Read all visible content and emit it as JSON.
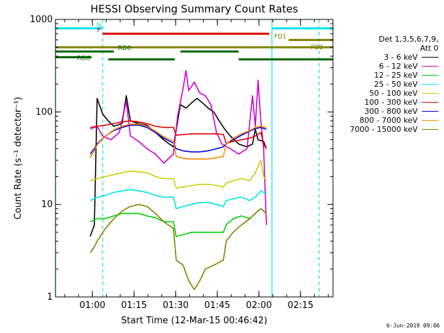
{
  "chart_data": {
    "type": "line",
    "title": "HESSI Observing Summary Count Rates",
    "xlabel": "Start Time (12-Mar-15 00:46:42)",
    "ylabel": "Count Rate (s⁻¹ detector⁻¹)",
    "yscale": "log",
    "ylim": [
      1,
      1000
    ],
    "xlim_minutes": [
      0,
      100
    ],
    "y_ticks": [
      "1",
      "10",
      "100",
      "1000"
    ],
    "x_ticks": [
      {
        "label": "01:00",
        "t": 13.3
      },
      {
        "label": "01:15",
        "t": 28.3
      },
      {
        "label": "01:30",
        "t": 43.3
      },
      {
        "label": "01:45",
        "t": 58.3
      },
      {
        "label": "02:00",
        "t": 73.3
      },
      {
        "label": "02:15",
        "t": 88.3
      }
    ],
    "x_minor_step_minutes": 5,
    "legend": {
      "header_lines": [
        "Det 1,3,5,6,7,9,",
        "Att 0"
      ],
      "placement": "right"
    },
    "series": [
      {
        "name": "3 - 6 keV",
        "color": "#000000",
        "points": [
          [
            12.5,
            4.5
          ],
          [
            14,
            6
          ],
          [
            15,
            140
          ],
          [
            17,
            95
          ],
          [
            19,
            80
          ],
          [
            21,
            70
          ],
          [
            24,
            75
          ],
          [
            25.5,
            150
          ],
          [
            27,
            80
          ],
          [
            30,
            75
          ],
          [
            33,
            72
          ],
          [
            36,
            60
          ],
          [
            39,
            50
          ],
          [
            41,
            45
          ],
          [
            42.5,
            42
          ],
          [
            45,
            120
          ],
          [
            47,
            110
          ],
          [
            49,
            125
          ],
          [
            51,
            140
          ],
          [
            53,
            125
          ],
          [
            55,
            110
          ],
          [
            57,
            100
          ],
          [
            59,
            80
          ],
          [
            61,
            65
          ],
          [
            63,
            55
          ],
          [
            66,
            45
          ],
          [
            69,
            42
          ],
          [
            71,
            45
          ],
          [
            72,
            65
          ],
          [
            73,
            50
          ],
          [
            75,
            48
          ],
          [
            76,
            40
          ]
        ]
      },
      {
        "name": "6 - 12 keV",
        "color": "#cc00cc",
        "points": [
          [
            12.5,
            65
          ],
          [
            14,
            68
          ],
          [
            15,
            70
          ],
          [
            17,
            55
          ],
          [
            20,
            50
          ],
          [
            23,
            60
          ],
          [
            25.5,
            130
          ],
          [
            27,
            55
          ],
          [
            30,
            48
          ],
          [
            33,
            40
          ],
          [
            36,
            35
          ],
          [
            39,
            28
          ],
          [
            42.5,
            35
          ],
          [
            44,
            90
          ],
          [
            46,
            180
          ],
          [
            47,
            280
          ],
          [
            48,
            170
          ],
          [
            50,
            210
          ],
          [
            52,
            160
          ],
          [
            54,
            150
          ],
          [
            56,
            120
          ],
          [
            58,
            60
          ],
          [
            60,
            45
          ],
          [
            63,
            40
          ],
          [
            66,
            35
          ],
          [
            69,
            40
          ],
          [
            71,
            150
          ],
          [
            72,
            70
          ],
          [
            73,
            220
          ],
          [
            74,
            80
          ],
          [
            75,
            40
          ],
          [
            76,
            6
          ]
        ]
      },
      {
        "name": "12 - 25 keV",
        "color": "#00cc00",
        "points": [
          [
            12.5,
            6.5
          ],
          [
            15,
            7
          ],
          [
            18,
            7
          ],
          [
            21,
            7.5
          ],
          [
            24,
            8
          ],
          [
            27,
            8
          ],
          [
            30,
            8
          ],
          [
            33,
            7.5
          ],
          [
            36,
            7.2
          ],
          [
            39,
            6.5
          ],
          [
            42.5,
            6.5
          ],
          [
            43.5,
            4.5
          ],
          [
            46,
            4.7
          ],
          [
            49,
            5
          ],
          [
            52,
            5
          ],
          [
            55,
            5
          ],
          [
            58,
            5
          ],
          [
            60.5,
            5
          ],
          [
            61.5,
            6
          ],
          [
            64,
            7
          ],
          [
            67,
            7.5
          ],
          [
            70,
            7
          ],
          [
            72,
            8
          ],
          [
            74,
            9
          ],
          [
            76,
            8
          ]
        ]
      },
      {
        "name": "25 - 50 keV",
        "color": "#00e5e5",
        "points": [
          [
            12.5,
            11
          ],
          [
            15,
            12
          ],
          [
            18,
            12.5
          ],
          [
            21,
            13.5
          ],
          [
            24,
            14
          ],
          [
            27,
            14.5
          ],
          [
            30,
            14
          ],
          [
            33,
            13.5
          ],
          [
            36,
            12.5
          ],
          [
            39,
            12
          ],
          [
            42.5,
            12
          ],
          [
            43.5,
            9
          ],
          [
            46,
            9.5
          ],
          [
            49,
            10
          ],
          [
            52,
            10.5
          ],
          [
            55,
            10.5
          ],
          [
            58,
            10
          ],
          [
            60.5,
            9.5
          ],
          [
            61.5,
            11
          ],
          [
            64,
            11.5
          ],
          [
            67,
            12
          ],
          [
            70,
            11
          ],
          [
            72,
            12
          ],
          [
            74,
            14
          ],
          [
            76,
            13
          ]
        ]
      },
      {
        "name": "50 - 100 keV",
        "color": "#cccc00",
        "points": [
          [
            12.5,
            18
          ],
          [
            15,
            19
          ],
          [
            18,
            20
          ],
          [
            21,
            21
          ],
          [
            24,
            22
          ],
          [
            27,
            23
          ],
          [
            30,
            22.5
          ],
          [
            33,
            22
          ],
          [
            36,
            20
          ],
          [
            39,
            19
          ],
          [
            42.5,
            19
          ],
          [
            43.5,
            15
          ],
          [
            46,
            15.5
          ],
          [
            49,
            16
          ],
          [
            52,
            16.5
          ],
          [
            55,
            16.5
          ],
          [
            58,
            16
          ],
          [
            60.5,
            15.5
          ],
          [
            61.5,
            17
          ],
          [
            64,
            18
          ],
          [
            67,
            19
          ],
          [
            70,
            18
          ],
          [
            72,
            22
          ],
          [
            74,
            30
          ],
          [
            75,
            20
          ],
          [
            76,
            18
          ]
        ]
      },
      {
        "name": "100 - 300 keV",
        "color": "#dd0000",
        "points": [
          [
            12.5,
            68
          ],
          [
            15,
            70
          ],
          [
            18,
            72
          ],
          [
            21,
            75
          ],
          [
            24,
            78
          ],
          [
            27,
            80
          ],
          [
            30,
            78
          ],
          [
            33,
            75
          ],
          [
            36,
            70
          ],
          [
            39,
            68
          ],
          [
            42.5,
            68
          ],
          [
            43.5,
            56
          ],
          [
            46,
            57
          ],
          [
            49,
            58
          ],
          [
            52,
            58
          ],
          [
            55,
            58
          ],
          [
            58,
            58
          ],
          [
            60.5,
            57
          ],
          [
            61.5,
            46
          ],
          [
            64,
            48
          ],
          [
            67,
            50
          ],
          [
            70,
            52
          ],
          [
            72,
            55
          ],
          [
            74,
            60
          ],
          [
            75,
            45
          ],
          [
            76,
            40
          ]
        ]
      },
      {
        "name": "300 - 800 keV",
        "color": "#0000dd",
        "points": [
          [
            12.5,
            35
          ],
          [
            14,
            40
          ],
          [
            15,
            45
          ],
          [
            18,
            55
          ],
          [
            21,
            63
          ],
          [
            24,
            68
          ],
          [
            27,
            72
          ],
          [
            30,
            72
          ],
          [
            33,
            68
          ],
          [
            36,
            60
          ],
          [
            39,
            52
          ],
          [
            42.5,
            46
          ],
          [
            43.5,
            40
          ],
          [
            46,
            38
          ],
          [
            49,
            37
          ],
          [
            52,
            37
          ],
          [
            55,
            38
          ],
          [
            58,
            40
          ],
          [
            60.5,
            42
          ],
          [
            61.5,
            45
          ],
          [
            64,
            50
          ],
          [
            67,
            56
          ],
          [
            70,
            62
          ],
          [
            72,
            66
          ],
          [
            74,
            68
          ],
          [
            76,
            65
          ]
        ]
      },
      {
        "name": "800 - 7000 keV",
        "color": "#ff8800",
        "points": [
          [
            12.5,
            32
          ],
          [
            14,
            38
          ],
          [
            15,
            44
          ],
          [
            18,
            55
          ],
          [
            21,
            64
          ],
          [
            24,
            70
          ],
          [
            27,
            74
          ],
          [
            30,
            74
          ],
          [
            33,
            70
          ],
          [
            36,
            62
          ],
          [
            39,
            54
          ],
          [
            42.5,
            48
          ],
          [
            43.5,
            33
          ],
          [
            46,
            31.5
          ],
          [
            49,
            31
          ],
          [
            52,
            31
          ],
          [
            55,
            31
          ],
          [
            58,
            32
          ],
          [
            60.5,
            33
          ],
          [
            61.5,
            45
          ],
          [
            64,
            52
          ],
          [
            67,
            58
          ],
          [
            70,
            63
          ],
          [
            72,
            68
          ],
          [
            74,
            70
          ],
          [
            76,
            68
          ]
        ]
      },
      {
        "name": "7000 - 15000 keV",
        "color": "#808000",
        "points": [
          [
            12.5,
            3
          ],
          [
            14,
            3.5
          ],
          [
            15,
            4
          ],
          [
            18,
            5.5
          ],
          [
            21,
            7
          ],
          [
            24,
            8.5
          ],
          [
            27,
            9.5
          ],
          [
            30,
            10
          ],
          [
            33,
            9.5
          ],
          [
            36,
            8
          ],
          [
            39,
            6.5
          ],
          [
            42.5,
            5.5
          ],
          [
            43.5,
            2.5
          ],
          [
            46,
            2.2
          ],
          [
            48,
            1.5
          ],
          [
            50,
            1.2
          ],
          [
            52,
            1.5
          ],
          [
            54,
            2
          ],
          [
            57,
            2.2
          ],
          [
            60.5,
            2.5
          ],
          [
            61.5,
            4
          ],
          [
            64,
            5
          ],
          [
            67,
            6
          ],
          [
            70,
            7
          ],
          [
            72,
            8
          ],
          [
            74,
            9
          ],
          [
            76,
            8
          ]
        ]
      }
    ],
    "flags": [
      {
        "label": "N",
        "color": "#00e5e5",
        "level": 800,
        "start": 0,
        "end": 17,
        "label_at": "end"
      },
      {
        "label": "N",
        "color": "#00e5e5",
        "level": 800,
        "start": 78,
        "end": 100,
        "label_at": "none"
      },
      {
        "label": "F",
        "color": "#dd0000",
        "level": 700,
        "start": 17,
        "end": 77,
        "label_at": "start"
      },
      {
        "label": "FD1",
        "color": "#808000",
        "level": 600,
        "start": 84,
        "end": 100,
        "label_at": "start"
      },
      {
        "label": "FD2",
        "color": "#808000",
        "level": 500,
        "start": 0,
        "end": 100,
        "label_at": "near-end"
      },
      {
        "label": "RD0",
        "color": "#006600",
        "level": 450,
        "start": 0,
        "end": 21,
        "label_at": "after"
      },
      {
        "label": "",
        "color": "#006600",
        "level": 450,
        "start": 45,
        "end": 66,
        "label_at": "none"
      },
      {
        "label": "RD6",
        "color": "#006600",
        "level": 390,
        "start": 0,
        "end": 13,
        "label_at": "end"
      },
      {
        "label": "",
        "color": "#006600",
        "level": 370,
        "start": 19,
        "end": 43,
        "label_at": "none"
      },
      {
        "label": "",
        "color": "#006600",
        "level": 370,
        "start": 66,
        "end": 100,
        "label_at": "none"
      }
    ],
    "vertical_markers": [
      {
        "t": 0,
        "color": "#00e5e5",
        "style": "solid"
      },
      {
        "t": 17,
        "color": "#00e5e5",
        "style": "dashed"
      },
      {
        "t": 78,
        "color": "#00e5e5",
        "style": "solid"
      },
      {
        "t": 95,
        "color": "#00e5e5",
        "style": "dashed"
      }
    ],
    "grid": false
  },
  "footer": {
    "date_stamp": "6-Jun-2019 09:06"
  }
}
